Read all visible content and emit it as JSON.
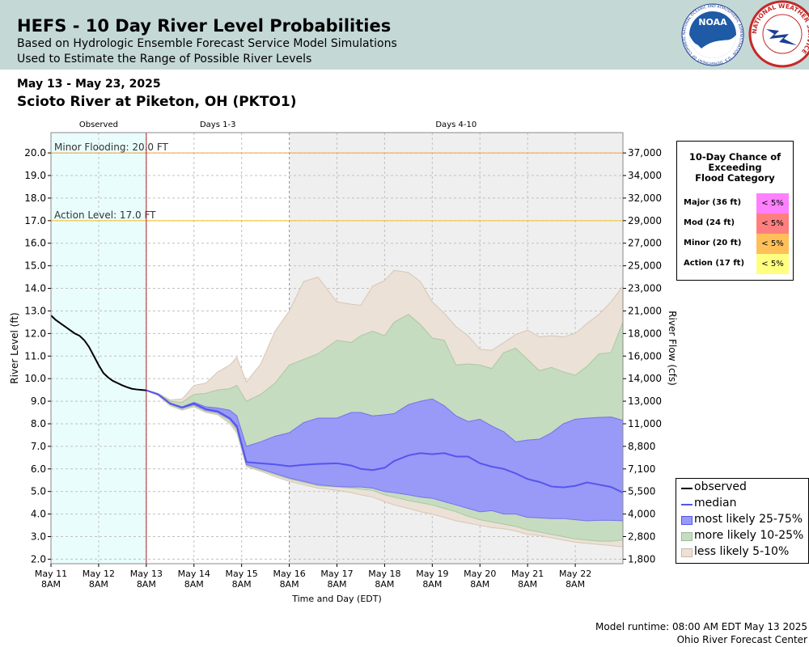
{
  "header": {
    "title": "HEFS - 10 Day River Level Probabilities",
    "subtitle1": "Based on Hydrologic Ensemble Forecast Service Model Simulations",
    "subtitle2": "Used to Estimate the Range of Possible River Levels",
    "noaa_logo_text": "NOAA",
    "noaa_logo_ring": "NATIONAL OCEANIC AND ATMOSPHERIC ADMINISTRATION · U.S. DEPARTMENT OF COMMERCE",
    "nws_logo_ring": "NATIONAL WEATHER SERVICE"
  },
  "date_range": "May 13 - May 23, 2025",
  "location": "Scioto River at Piketon, OH (PKTO1)",
  "chart_data": {
    "type": "area",
    "ylabel": "River Level (ft)",
    "y2label": "River Flow (cfs)",
    "xlabel": "Time and Day (EDT)",
    "ylim": [
      1.8,
      20.9
    ],
    "grid": true,
    "periods": [
      "Observed",
      "Days 1-3",
      "Days 4-10"
    ],
    "x_ticks": [
      "May 11 8AM",
      "May 12 8AM",
      "May 13 8AM",
      "May 14 8AM",
      "May 15 8AM",
      "May 16 8AM",
      "May 17 8AM",
      "May 18 8AM",
      "May 19 8AM",
      "May 20 8AM",
      "May 21 8AM",
      "May 22 8AM"
    ],
    "x_tick_lines": [
      [
        "May 11",
        "8AM"
      ],
      [
        "May 12",
        "8AM"
      ],
      [
        "May 13",
        "8AM"
      ],
      [
        "May 14",
        "8AM"
      ],
      [
        "May 15",
        "8AM"
      ],
      [
        "May 16",
        "8AM"
      ],
      [
        "May 17",
        "8AM"
      ],
      [
        "May 18",
        "8AM"
      ],
      [
        "May 19",
        "8AM"
      ],
      [
        "May 20",
        "8AM"
      ],
      [
        "May 21",
        "8AM"
      ],
      [
        "May 22",
        "8AM"
      ]
    ],
    "y_ticks": [
      2.0,
      3.0,
      4.0,
      5.0,
      6.0,
      7.0,
      8.0,
      9.0,
      10.0,
      11.0,
      12.0,
      13.0,
      14.0,
      15.0,
      16.0,
      17.0,
      18.0,
      19.0,
      20.0
    ],
    "y_tick_labels": [
      "2.0",
      "3.0",
      "4.0",
      "5.0",
      "6.0",
      "7.0",
      "8.0",
      "9.0",
      "10.0",
      "11.0",
      "12.0",
      "13.0",
      "14.0",
      "15.0",
      "16.0",
      "17.0",
      "18.0",
      "19.0",
      "20.0"
    ],
    "y2_ticks": [
      {
        "stage": 2.0,
        "label": "1,800"
      },
      {
        "stage": 3.0,
        "label": "2,800"
      },
      {
        "stage": 4.0,
        "label": "4,000"
      },
      {
        "stage": 5.0,
        "label": "5,500"
      },
      {
        "stage": 6.0,
        "label": "7,100"
      },
      {
        "stage": 7.0,
        "label": "8,800"
      },
      {
        "stage": 8.0,
        "label": "11,000"
      },
      {
        "stage": 9.0,
        "label": "13,000"
      },
      {
        "stage": 10.0,
        "label": "14,000"
      },
      {
        "stage": 11.0,
        "label": "16,000"
      },
      {
        "stage": 12.0,
        "label": "18,000"
      },
      {
        "stage": 13.0,
        "label": "21,000"
      },
      {
        "stage": 14.0,
        "label": "23,000"
      },
      {
        "stage": 15.0,
        "label": "25,000"
      },
      {
        "stage": 16.0,
        "label": "27,000"
      },
      {
        "stage": 17.0,
        "label": "29,000"
      },
      {
        "stage": 18.0,
        "label": "32,000"
      },
      {
        "stage": 19.0,
        "label": "34,000"
      },
      {
        "stage": 20.0,
        "label": "37,000"
      }
    ],
    "thresholds": [
      {
        "label": "Minor Flooding: 20.0 FT",
        "value": 20.0,
        "color": "#f0a040"
      },
      {
        "label": "Action Level: 17.0 FT",
        "value": 17.0,
        "color": "#f0c020"
      }
    ],
    "colors": {
      "observed": "#000000",
      "median": "#5555ee",
      "band_25_75": "#9999f7",
      "band_10_25": "#c6dcc0",
      "band_5_10": "#ece1d6",
      "observed_bg": "#eafdfd",
      "days4_bg": "#efefef",
      "forecast_start_line": "#aa2222"
    },
    "series": [
      {
        "name": "observed",
        "x": [
          0,
          0.1,
          0.2,
          0.3,
          0.4,
          0.5,
          0.6,
          0.7,
          0.8,
          0.9,
          1.0,
          1.1,
          1.2,
          1.3,
          1.4,
          1.5,
          1.6,
          1.7,
          1.8,
          1.9,
          2.0
        ],
        "y": [
          12.8,
          12.6,
          12.45,
          12.3,
          12.15,
          12.0,
          11.9,
          11.7,
          11.4,
          11.0,
          10.6,
          10.25,
          10.05,
          9.9,
          9.8,
          9.7,
          9.62,
          9.55,
          9.52,
          9.5,
          9.48
        ]
      },
      {
        "name": "median",
        "x": [
          2.0,
          2.25,
          2.5,
          2.75,
          3.0,
          3.25,
          3.5,
          3.75,
          3.9,
          4.1,
          4.4,
          4.7,
          5.0,
          5.3,
          5.6,
          6.0,
          6.3,
          6.5,
          6.75,
          7.0,
          7.2,
          7.5,
          7.75,
          8.0,
          8.25,
          8.5,
          8.75,
          9.0,
          9.25,
          9.5,
          9.75,
          10.0,
          10.25,
          10.5,
          10.75,
          11.0,
          11.25,
          11.5,
          11.75,
          12.0
        ],
        "y": [
          9.48,
          9.3,
          8.9,
          8.72,
          8.9,
          8.65,
          8.55,
          8.25,
          7.9,
          6.3,
          6.25,
          6.2,
          6.12,
          6.18,
          6.22,
          6.25,
          6.15,
          6.0,
          5.95,
          6.05,
          6.35,
          6.6,
          6.7,
          6.65,
          6.7,
          6.55,
          6.55,
          6.25,
          6.1,
          6.0,
          5.8,
          5.55,
          5.42,
          5.22,
          5.18,
          5.25,
          5.4,
          5.3,
          5.2,
          4.95
        ]
      },
      {
        "name": "most likely 25-75%",
        "x": [
          2.0,
          2.25,
          2.5,
          2.75,
          3.0,
          3.25,
          3.5,
          3.75,
          3.9,
          4.1,
          4.4,
          4.7,
          5.0,
          5.3,
          5.6,
          6.0,
          6.3,
          6.5,
          6.75,
          7.0,
          7.2,
          7.5,
          7.75,
          8.0,
          8.25,
          8.5,
          8.75,
          9.0,
          9.25,
          9.5,
          9.75,
          10.0,
          10.25,
          10.5,
          10.75,
          11.0,
          11.25,
          11.5,
          11.75,
          12.0
        ],
        "upper": [
          9.5,
          9.3,
          8.92,
          8.75,
          8.95,
          8.75,
          8.7,
          8.6,
          8.35,
          7.0,
          7.2,
          7.45,
          7.6,
          8.05,
          8.25,
          8.25,
          8.5,
          8.5,
          8.35,
          8.4,
          8.45,
          8.85,
          9.0,
          9.1,
          8.8,
          8.35,
          8.1,
          8.2,
          7.9,
          7.65,
          7.2,
          7.28,
          7.32,
          7.6,
          8.0,
          8.2,
          8.25,
          8.28,
          8.3,
          8.15
        ],
        "lower": [
          9.48,
          9.3,
          8.88,
          8.7,
          8.85,
          8.6,
          8.5,
          8.2,
          7.8,
          6.2,
          6.0,
          5.8,
          5.6,
          5.45,
          5.3,
          5.22,
          5.2,
          5.2,
          5.15,
          5.0,
          4.95,
          4.85,
          4.75,
          4.7,
          4.55,
          4.4,
          4.25,
          4.1,
          4.15,
          4.0,
          4.0,
          3.85,
          3.83,
          3.8,
          3.8,
          3.75,
          3.7,
          3.72,
          3.72,
          3.7
        ]
      },
      {
        "name": "more likely 10-25%",
        "x": [
          2.0,
          2.25,
          2.5,
          2.75,
          3.0,
          3.25,
          3.5,
          3.75,
          3.9,
          4.1,
          4.4,
          4.7,
          5.0,
          5.3,
          5.6,
          6.0,
          6.3,
          6.5,
          6.75,
          7.0,
          7.2,
          7.5,
          7.75,
          8.0,
          8.25,
          8.5,
          8.75,
          9.0,
          9.25,
          9.5,
          9.75,
          10.0,
          10.25,
          10.5,
          10.75,
          11.0,
          11.25,
          11.5,
          11.75,
          12.0
        ],
        "upper": [
          9.5,
          9.32,
          9.0,
          8.95,
          9.3,
          9.35,
          9.5,
          9.55,
          9.7,
          9.0,
          9.3,
          9.8,
          10.6,
          10.85,
          11.1,
          11.7,
          11.6,
          11.9,
          12.1,
          11.9,
          12.5,
          12.85,
          12.4,
          11.8,
          11.7,
          10.6,
          10.65,
          10.6,
          10.45,
          11.15,
          11.35,
          10.85,
          10.35,
          10.5,
          10.3,
          10.15,
          10.55,
          11.1,
          11.15,
          12.5
        ],
        "lower": [
          9.48,
          9.28,
          8.85,
          8.65,
          8.8,
          8.55,
          8.45,
          8.1,
          7.7,
          6.15,
          5.95,
          5.75,
          5.55,
          5.4,
          5.25,
          5.2,
          5.15,
          5.1,
          5.05,
          4.85,
          4.75,
          4.6,
          4.5,
          4.4,
          4.25,
          4.1,
          3.9,
          3.75,
          3.65,
          3.55,
          3.45,
          3.3,
          3.2,
          3.1,
          3.0,
          2.9,
          2.85,
          2.8,
          2.8,
          2.85
        ]
      },
      {
        "name": "less likely 5-10%",
        "x": [
          2.0,
          2.25,
          2.5,
          2.75,
          3.0,
          3.25,
          3.5,
          3.75,
          3.9,
          4.1,
          4.4,
          4.7,
          5.0,
          5.3,
          5.6,
          6.0,
          6.3,
          6.5,
          6.75,
          7.0,
          7.2,
          7.5,
          7.75,
          8.0,
          8.25,
          8.5,
          8.75,
          9.0,
          9.25,
          9.5,
          9.75,
          10.0,
          10.25,
          10.5,
          10.75,
          11.0,
          11.25,
          11.5,
          11.75,
          12.0
        ],
        "upper": [
          9.5,
          9.35,
          9.05,
          9.1,
          9.7,
          9.8,
          10.3,
          10.6,
          10.95,
          9.85,
          10.65,
          12.1,
          13.0,
          14.3,
          14.5,
          13.4,
          13.3,
          13.25,
          14.1,
          14.35,
          14.8,
          14.7,
          14.3,
          13.4,
          12.9,
          12.3,
          11.9,
          11.3,
          11.25,
          11.6,
          11.95,
          12.15,
          11.85,
          11.9,
          11.85,
          12.0,
          12.45,
          12.85,
          13.4,
          14.1
        ],
        "lower": [
          9.48,
          9.25,
          8.8,
          8.6,
          8.75,
          8.5,
          8.4,
          8.0,
          7.6,
          6.1,
          5.9,
          5.65,
          5.45,
          5.3,
          5.15,
          5.05,
          4.95,
          4.85,
          4.75,
          4.55,
          4.4,
          4.25,
          4.1,
          4.0,
          3.85,
          3.7,
          3.6,
          3.5,
          3.4,
          3.35,
          3.25,
          3.1,
          3.05,
          2.95,
          2.85,
          2.75,
          2.7,
          2.65,
          2.6,
          2.55
        ]
      }
    ]
  },
  "prob_box": {
    "title": [
      "10-Day Chance of",
      "Exceeding",
      "Flood Category"
    ],
    "rows": [
      {
        "label": "Major (36 ft)",
        "value": "< 5%",
        "color": "#ff80ff"
      },
      {
        "label": "Mod (24 ft)",
        "value": "< 5%",
        "color": "#ff7f7f"
      },
      {
        "label": "Minor (20 ft)",
        "value": "< 5%",
        "color": "#ffc05a"
      },
      {
        "label": "Action (17 ft)",
        "value": "< 5%",
        "color": "#ffff80"
      }
    ]
  },
  "legend": {
    "items": [
      {
        "label": "observed",
        "kind": "line",
        "color": "#000000"
      },
      {
        "label": "median",
        "kind": "line",
        "color": "#5555ee"
      },
      {
        "label": "most likely 25-75%",
        "kind": "box",
        "color": "#9999f7",
        "border": "#5555ee"
      },
      {
        "label": "more likely 10-25%",
        "kind": "box",
        "color": "#c6dcc0",
        "border": "#99bb99"
      },
      {
        "label": "less likely 5-10%",
        "kind": "box",
        "color": "#ece1d6",
        "border": "#ccb8a6"
      }
    ]
  },
  "footer": {
    "runtime": "Model runtime: 08:00 AM EDT May 13 2025",
    "center": "Ohio River Forecast Center"
  }
}
